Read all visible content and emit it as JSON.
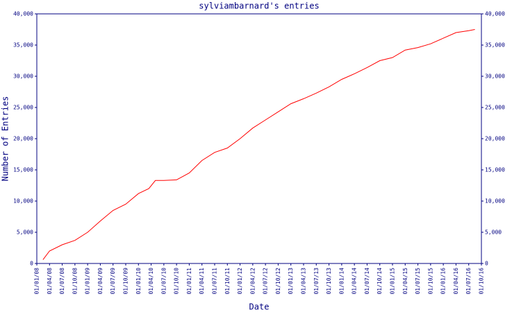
{
  "chart_data": {
    "type": "line",
    "title": "sylviambarnard's entries",
    "xlabel": "Date",
    "ylabel": "Number of Entries",
    "xlim": [
      "01/01/08",
      "01/10/16"
    ],
    "xticks": [
      "01/01/08",
      "01/04/08",
      "01/07/08",
      "01/10/08",
      "01/01/09",
      "01/04/09",
      "01/07/09",
      "01/10/09",
      "01/01/10",
      "01/04/10",
      "01/07/10",
      "01/10/10",
      "01/01/11",
      "01/04/11",
      "01/07/11",
      "01/10/11",
      "01/01/12",
      "01/04/12",
      "01/07/12",
      "01/10/12",
      "01/01/13",
      "01/04/13",
      "01/07/13",
      "01/10/13",
      "01/01/14",
      "01/04/14",
      "01/07/14",
      "01/10/14",
      "01/01/15",
      "01/04/15",
      "01/07/15",
      "01/10/15",
      "01/01/16",
      "01/04/16",
      "01/07/16",
      "01/10/16"
    ],
    "ylim": [
      0,
      40000
    ],
    "yticks": [
      0,
      {
        "value": 5000,
        "label": "5,000"
      },
      {
        "value": 10000,
        "label": "10,000"
      },
      {
        "value": 15000,
        "label": "15,000"
      },
      {
        "value": 20000,
        "label": "20,000"
      },
      {
        "value": 25000,
        "label": "25,000"
      },
      {
        "value": 30000,
        "label": "30,000"
      },
      {
        "value": 35000,
        "label": "35,000"
      },
      {
        "value": 40000,
        "label": "40,000"
      }
    ],
    "y2lim": [
      0,
      40000
    ],
    "y2ticks": [
      0,
      {
        "value": 5000,
        "label": "5,000"
      },
      {
        "value": 10000,
        "label": "10,000"
      },
      {
        "value": 15000,
        "label": "15,000"
      },
      {
        "value": 20000,
        "label": "20,000"
      },
      {
        "value": 25000,
        "label": "25,000"
      },
      {
        "value": 30000,
        "label": "30,000"
      },
      {
        "value": 35000,
        "label": "35,000"
      },
      {
        "value": 40000,
        "label": "40,000"
      }
    ],
    "x": [
      "15/02/08",
      "01/04/08",
      "01/07/08",
      "01/10/08",
      "01/01/09",
      "01/04/09",
      "01/07/09",
      "01/10/09",
      "01/01/10",
      "15/03/10",
      "01/05/10",
      "01/07/10",
      "01/10/10",
      "01/01/11",
      "01/04/11",
      "01/07/11",
      "01/10/11",
      "01/01/12",
      "01/04/12",
      "01/07/12",
      "01/10/12",
      "01/01/13",
      "01/04/13",
      "01/07/13",
      "01/10/13",
      "01/01/14",
      "01/04/14",
      "01/07/14",
      "01/10/14",
      "01/01/15",
      "01/04/15",
      "01/07/15",
      "01/10/15",
      "01/01/16",
      "01/04/16",
      "01/07/16",
      "15/08/16"
    ],
    "series": [
      {
        "name": "entries",
        "color": "#ff0000",
        "values": [
          600,
          2000,
          3000,
          3700,
          5000,
          6800,
          8500,
          9500,
          11200,
          12000,
          13300,
          13300,
          13400,
          14500,
          16500,
          17800,
          18500,
          20000,
          21700,
          23000,
          24300,
          25600,
          26400,
          27300,
          28300,
          29500,
          30400,
          31400,
          32500,
          33000,
          34200,
          34600,
          35200,
          36100,
          37000,
          37300,
          37500
        ]
      }
    ]
  }
}
